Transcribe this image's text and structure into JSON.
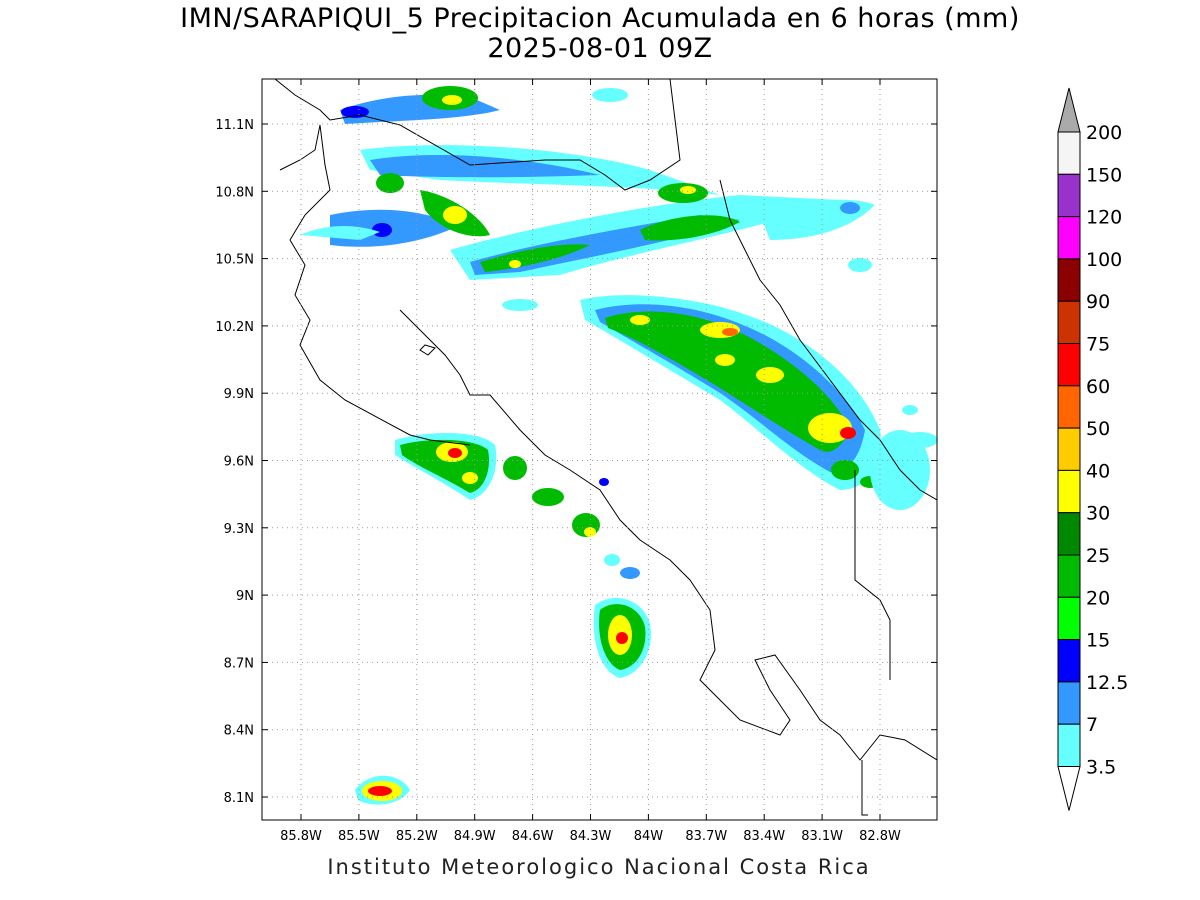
{
  "title_line1": "IMN/SARAPIQUI_5 Precipitacion Acumulada en 6 horas (mm)",
  "title_line2": "2025-08-01 09Z",
  "footer": "Instituto Meteorologico Nacional Costa Rica",
  "map": {
    "lon_ticks": [
      "85.8W",
      "85.5W",
      "85.2W",
      "84.9W",
      "84.6W",
      "84.3W",
      "84W",
      "83.7W",
      "83.4W",
      "83.1W",
      "82.8W"
    ],
    "lat_ticks": [
      "11.1N",
      "10.8N",
      "10.5N",
      "10.2N",
      "9.9N",
      "9.6N",
      "9.3N",
      "9N",
      "8.7N",
      "8.4N",
      "8.1N"
    ],
    "grid": true
  },
  "colorbar": {
    "labels": [
      "200",
      "150",
      "120",
      "100",
      "90",
      "75",
      "60",
      "50",
      "40",
      "30",
      "25",
      "20",
      "15",
      "12.5",
      "7",
      "3.5"
    ],
    "colors": [
      "#f5f5f5",
      "#9932cc",
      "#ff00ff",
      "#8b0000",
      "#cc3300",
      "#ff0000",
      "#ff6600",
      "#ffcc00",
      "#ffff00",
      "#008800",
      "#00bb00",
      "#00ff00",
      "#0000ff",
      "#3399ff",
      "#66ffff"
    ],
    "top_arrow_color": "#aaaaaa"
  }
}
